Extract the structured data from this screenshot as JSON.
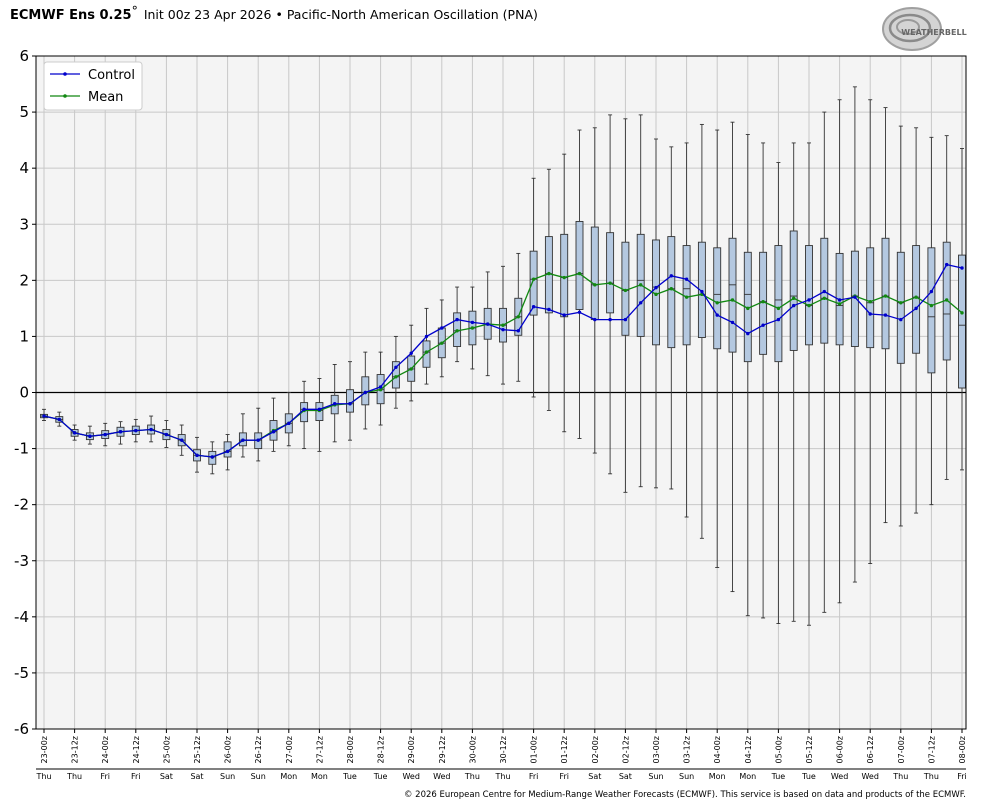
{
  "header": {
    "model": "ECMWF Ens 0.25",
    "degree": "°",
    "subtitle": "Init 00z 23 Apr 2026 • Pacific-North American Oscillation (PNA)"
  },
  "logo": {
    "text": "WEATHERBELL"
  },
  "footer": {
    "text": "© 2026 European Centre for Medium-Range Weather Forecasts (ECMWF). This service is based on data and products of the ECMWF."
  },
  "colors": {
    "control": "#0000cc",
    "mean": "#118811",
    "box_fill": "#b4c8e0",
    "box_edge": "#333333",
    "plot_bg": "#f4f4f4",
    "grid": "#c8c8c8"
  },
  "chart_data": {
    "type": "box",
    "ylim": [
      -6,
      6
    ],
    "yticks": [
      "6",
      "5",
      "4",
      "3",
      "2",
      "1",
      "0",
      "-1",
      "-2",
      "-3",
      "-4",
      "-5",
      "-6"
    ],
    "grid": true,
    "legend_position": "top-left",
    "legend": [
      "Control",
      "Mean"
    ],
    "x_date_labels": [
      "23-00z",
      "23-12z",
      "24-00z",
      "24-12z",
      "25-00z",
      "25-12z",
      "26-00z",
      "26-12z",
      "27-00z",
      "27-12z",
      "28-00z",
      "28-12z",
      "29-00z",
      "29-12z",
      "30-00z",
      "30-12z",
      "01-00z",
      "01-12z",
      "02-00z",
      "02-12z",
      "03-00z",
      "03-12z",
      "04-00z",
      "04-12z",
      "05-00z",
      "05-12z",
      "06-00z",
      "06-12z",
      "07-00z",
      "07-12z",
      "08-00z"
    ],
    "x_day_labels": [
      "Thu",
      "Thu",
      "Fri",
      "Fri",
      "Sat",
      "Sat",
      "Sun",
      "Sun",
      "Mon",
      "Mon",
      "Tue",
      "Tue",
      "Wed",
      "Wed",
      "Thu",
      "Thu",
      "Fri",
      "Fri",
      "Sat",
      "Sat",
      "Sun",
      "Sun",
      "Mon",
      "Mon",
      "Tue",
      "Tue",
      "Wed",
      "Wed",
      "Thu",
      "Thu",
      "Fri"
    ],
    "forecast_hours": [
      0,
      6,
      12,
      18,
      24,
      30,
      36,
      42,
      48,
      54,
      60,
      66,
      72,
      78,
      84,
      90,
      96,
      102,
      108,
      114,
      120,
      126,
      132,
      138,
      144,
      150,
      156,
      162,
      168,
      174,
      180,
      186,
      192,
      198,
      204,
      210,
      216,
      222,
      228,
      234,
      240,
      246,
      252,
      258,
      264,
      270,
      276,
      282,
      288,
      294,
      300,
      306,
      312,
      318,
      324,
      330,
      336,
      342,
      348,
      354,
      360
    ],
    "series": [
      {
        "name": "Control",
        "values": [
          -0.42,
          -0.48,
          -0.72,
          -0.78,
          -0.75,
          -0.7,
          -0.68,
          -0.66,
          -0.75,
          -0.85,
          -1.12,
          -1.15,
          -1.05,
          -0.85,
          -0.85,
          -0.7,
          -0.55,
          -0.3,
          -0.3,
          -0.2,
          -0.2,
          0.0,
          0.1,
          0.45,
          0.7,
          1.0,
          1.15,
          1.3,
          1.25,
          1.22,
          1.12,
          1.1,
          1.53,
          1.48,
          1.38,
          1.43,
          1.3,
          1.3,
          1.3,
          1.6,
          1.87,
          2.08,
          2.02,
          1.8,
          1.38,
          1.25,
          1.05,
          1.2,
          1.3,
          1.55,
          1.65,
          1.8,
          1.65,
          1.7,
          1.4,
          1.38,
          1.3,
          1.5,
          1.8,
          2.28,
          2.22
        ]
      },
      {
        "name": "Mean",
        "values": [
          -0.42,
          -0.48,
          -0.72,
          -0.78,
          -0.75,
          -0.7,
          -0.68,
          -0.66,
          -0.75,
          -0.85,
          -1.12,
          -1.15,
          -1.05,
          -0.85,
          -0.85,
          -0.68,
          -0.55,
          -0.32,
          -0.32,
          -0.22,
          -0.2,
          0.0,
          0.05,
          0.28,
          0.42,
          0.72,
          0.88,
          1.1,
          1.15,
          1.22,
          1.2,
          1.35,
          2.02,
          2.12,
          2.05,
          2.12,
          1.92,
          1.95,
          1.82,
          1.92,
          1.75,
          1.85,
          1.7,
          1.75,
          1.6,
          1.65,
          1.5,
          1.62,
          1.5,
          1.68,
          1.55,
          1.68,
          1.58,
          1.72,
          1.62,
          1.72,
          1.6,
          1.7,
          1.55,
          1.65,
          1.42
        ]
      }
    ],
    "boxes": [
      {
        "whisker_low": -0.5,
        "q1": -0.45,
        "median": -0.42,
        "q3": -0.39,
        "whisker_high": -0.3
      },
      {
        "whisker_low": -0.6,
        "q1": -0.53,
        "median": -0.48,
        "q3": -0.43,
        "whisker_high": -0.35
      },
      {
        "whisker_low": -0.85,
        "q1": -0.78,
        "median": -0.72,
        "q3": -0.66,
        "whisker_high": -0.58
      },
      {
        "whisker_low": -0.92,
        "q1": -0.84,
        "median": -0.78,
        "q3": -0.72,
        "whisker_high": -0.6
      },
      {
        "whisker_low": -0.95,
        "q1": -0.82,
        "median": -0.75,
        "q3": -0.68,
        "whisker_high": -0.55
      },
      {
        "whisker_low": -0.92,
        "q1": -0.78,
        "median": -0.7,
        "q3": -0.62,
        "whisker_high": -0.52
      },
      {
        "whisker_low": -0.88,
        "q1": -0.75,
        "median": -0.68,
        "q3": -0.6,
        "whisker_high": -0.48
      },
      {
        "whisker_low": -0.88,
        "q1": -0.74,
        "median": -0.66,
        "q3": -0.58,
        "whisker_high": -0.42
      },
      {
        "whisker_low": -0.98,
        "q1": -0.84,
        "median": -0.75,
        "q3": -0.66,
        "whisker_high": -0.5
      },
      {
        "whisker_low": -1.12,
        "q1": -0.95,
        "median": -0.85,
        "q3": -0.75,
        "whisker_high": -0.58
      },
      {
        "whisker_low": -1.42,
        "q1": -1.22,
        "median": -1.12,
        "q3": -1.02,
        "whisker_high": -0.8
      },
      {
        "whisker_low": -1.45,
        "q1": -1.28,
        "median": -1.15,
        "q3": -1.05,
        "whisker_high": -0.88
      },
      {
        "whisker_low": -1.38,
        "q1": -1.15,
        "median": -1.05,
        "q3": -0.88,
        "whisker_high": -0.75
      },
      {
        "whisker_low": -1.15,
        "q1": -0.95,
        "median": -0.85,
        "q3": -0.72,
        "whisker_high": -0.38
      },
      {
        "whisker_low": -1.22,
        "q1": -1.0,
        "median": -0.85,
        "q3": -0.72,
        "whisker_high": -0.28
      },
      {
        "whisker_low": -1.05,
        "q1": -0.85,
        "median": -0.7,
        "q3": -0.5,
        "whisker_high": -0.1
      },
      {
        "whisker_low": -0.95,
        "q1": -0.72,
        "median": -0.55,
        "q3": -0.38,
        "whisker_high": 0.0
      },
      {
        "whisker_low": -1.0,
        "q1": -0.52,
        "median": -0.3,
        "q3": -0.18,
        "whisker_high": 0.2
      },
      {
        "whisker_low": -1.05,
        "q1": -0.5,
        "median": -0.32,
        "q3": -0.18,
        "whisker_high": 0.25
      },
      {
        "whisker_low": -0.88,
        "q1": -0.38,
        "median": -0.22,
        "q3": -0.05,
        "whisker_high": 0.5
      },
      {
        "whisker_low": -0.85,
        "q1": -0.35,
        "median": -0.2,
        "q3": 0.05,
        "whisker_high": 0.55
      },
      {
        "whisker_low": -0.65,
        "q1": -0.22,
        "median": 0.0,
        "q3": 0.28,
        "whisker_high": 0.72
      },
      {
        "whisker_low": -0.58,
        "q1": -0.2,
        "median": 0.05,
        "q3": 0.32,
        "whisker_high": 0.72
      },
      {
        "whisker_low": -0.28,
        "q1": 0.08,
        "median": 0.28,
        "q3": 0.55,
        "whisker_high": 1.0
      },
      {
        "whisker_low": -0.15,
        "q1": 0.2,
        "median": 0.42,
        "q3": 0.65,
        "whisker_high": 1.2
      },
      {
        "whisker_low": 0.15,
        "q1": 0.45,
        "median": 0.72,
        "q3": 0.92,
        "whisker_high": 1.5
      },
      {
        "whisker_low": 0.28,
        "q1": 0.62,
        "median": 0.88,
        "q3": 1.15,
        "whisker_high": 1.65
      },
      {
        "whisker_low": 0.55,
        "q1": 0.82,
        "median": 1.1,
        "q3": 1.42,
        "whisker_high": 1.88
      },
      {
        "whisker_low": 0.42,
        "q1": 0.85,
        "median": 1.15,
        "q3": 1.45,
        "whisker_high": 1.88
      },
      {
        "whisker_low": 0.3,
        "q1": 0.95,
        "median": 1.22,
        "q3": 1.5,
        "whisker_high": 2.15
      },
      {
        "whisker_low": 0.15,
        "q1": 0.9,
        "median": 1.2,
        "q3": 1.5,
        "whisker_high": 2.25
      },
      {
        "whisker_low": 0.2,
        "q1": 1.02,
        "median": 1.35,
        "q3": 1.68,
        "whisker_high": 2.48
      },
      {
        "whisker_low": -0.08,
        "q1": 1.38,
        "median": 2.02,
        "q3": 2.52,
        "whisker_high": 3.82
      },
      {
        "whisker_low": -0.32,
        "q1": 1.42,
        "median": 2.12,
        "q3": 2.78,
        "whisker_high": 3.98
      },
      {
        "whisker_low": -0.7,
        "q1": 1.35,
        "median": 2.05,
        "q3": 2.82,
        "whisker_high": 4.25
      },
      {
        "whisker_low": -0.82,
        "q1": 1.48,
        "median": 2.12,
        "q3": 3.05,
        "whisker_high": 4.68
      },
      {
        "whisker_low": -1.08,
        "q1": 1.3,
        "median": 1.92,
        "q3": 2.95,
        "whisker_high": 4.72
      },
      {
        "whisker_low": -1.45,
        "q1": 1.42,
        "median": 1.95,
        "q3": 2.85,
        "whisker_high": 4.95
      },
      {
        "whisker_low": -1.78,
        "q1": 1.02,
        "median": 1.82,
        "q3": 2.68,
        "whisker_high": 4.88
      },
      {
        "whisker_low": -1.68,
        "q1": 1.0,
        "median": 2.0,
        "q3": 2.82,
        "whisker_high": 4.95
      },
      {
        "whisker_low": -1.7,
        "q1": 0.85,
        "median": 1.88,
        "q3": 2.72,
        "whisker_high": 4.52
      },
      {
        "whisker_low": -1.72,
        "q1": 0.8,
        "median": 1.85,
        "q3": 2.78,
        "whisker_high": 4.38
      },
      {
        "whisker_low": -2.22,
        "q1": 0.85,
        "median": 1.85,
        "q3": 2.62,
        "whisker_high": 4.45
      },
      {
        "whisker_low": -2.6,
        "q1": 0.98,
        "median": 1.75,
        "q3": 2.68,
        "whisker_high": 4.78
      },
      {
        "whisker_low": -3.12,
        "q1": 0.78,
        "median": 1.75,
        "q3": 2.58,
        "whisker_high": 4.68
      },
      {
        "whisker_low": -3.55,
        "q1": 0.72,
        "median": 1.92,
        "q3": 2.75,
        "whisker_high": 4.82
      },
      {
        "whisker_low": -3.98,
        "q1": 0.55,
        "median": 1.75,
        "q3": 2.5,
        "whisker_high": 4.6
      },
      {
        "whisker_low": -4.02,
        "q1": 0.68,
        "median": 1.62,
        "q3": 2.5,
        "whisker_high": 4.45
      },
      {
        "whisker_low": -4.12,
        "q1": 0.55,
        "median": 1.65,
        "q3": 2.62,
        "whisker_high": 4.1
      },
      {
        "whisker_low": -4.08,
        "q1": 0.75,
        "median": 1.72,
        "q3": 2.88,
        "whisker_high": 4.45
      },
      {
        "whisker_low": -4.15,
        "q1": 0.85,
        "median": 1.55,
        "q3": 2.62,
        "whisker_high": 4.45
      },
      {
        "whisker_low": -3.92,
        "q1": 0.88,
        "median": 1.68,
        "q3": 2.75,
        "whisker_high": 5.0
      },
      {
        "whisker_low": -3.75,
        "q1": 0.85,
        "median": 1.55,
        "q3": 2.48,
        "whisker_high": 5.22
      },
      {
        "whisker_low": -3.38,
        "q1": 0.82,
        "median": 1.72,
        "q3": 2.52,
        "whisker_high": 5.45
      },
      {
        "whisker_low": -3.05,
        "q1": 0.8,
        "median": 1.6,
        "q3": 2.58,
        "whisker_high": 5.22
      },
      {
        "whisker_low": -2.32,
        "q1": 0.78,
        "median": 1.72,
        "q3": 2.75,
        "whisker_high": 5.08
      },
      {
        "whisker_low": -2.38,
        "q1": 0.52,
        "median": 1.6,
        "q3": 2.5,
        "whisker_high": 4.75
      },
      {
        "whisker_low": -2.15,
        "q1": 0.7,
        "median": 1.7,
        "q3": 2.62,
        "whisker_high": 4.72
      },
      {
        "whisker_low": -2.0,
        "q1": 0.35,
        "median": 1.35,
        "q3": 2.58,
        "whisker_high": 4.55
      },
      {
        "whisker_low": -1.55,
        "q1": 0.58,
        "median": 1.4,
        "q3": 2.68,
        "whisker_high": 4.58
      },
      {
        "whisker_low": -1.38,
        "q1": 0.08,
        "median": 1.2,
        "q3": 2.45,
        "whisker_high": 4.35
      }
    ]
  }
}
